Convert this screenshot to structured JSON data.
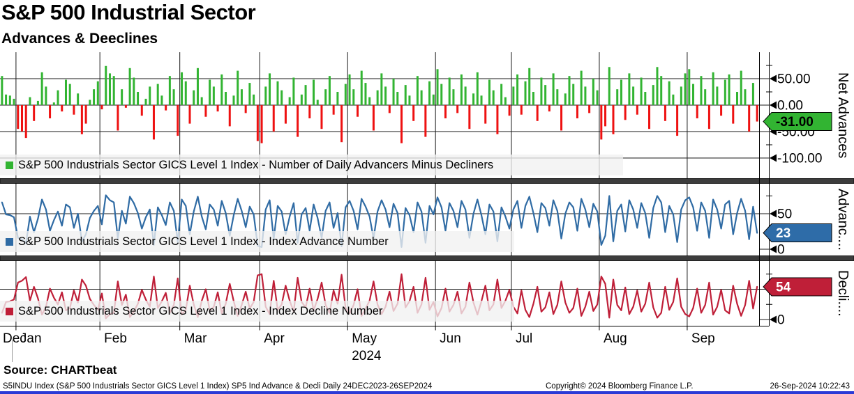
{
  "header": {
    "title": "S&P 500 Industrial Sector",
    "subtitle": "Advances & Deeclines"
  },
  "source_line": "Source: CHARTbeat",
  "footer": {
    "left": "S5INDU Index (S&P 500 Industrials Sector GICS Level 1 Index) SP5 Ind Advance & Decli  Daily 24DEC2023-26SEP2024",
    "center": "Copyright© 2024 Bloomberg Finance L.P.",
    "right": "26-Sep-2024 10:22:43"
  },
  "colors": {
    "advancers_green": "#32b432",
    "decliners_red": "#ee1111",
    "advance_line_blue": "#2f6ba4",
    "decline_line_crimson": "#bf1f38",
    "divider_gray": "#3c3c3c",
    "gridline_black": "#1a1a1a",
    "legend_bg": "#f1f1f1",
    "footer_bar_blue": "#2b3ad6"
  },
  "chart_data": {
    "frequency": "Daily",
    "date_range": "24DEC2023-26SEP2024",
    "x_axis": {
      "months": [
        "Dec",
        "Jan",
        "Feb",
        "Mar",
        "Apr",
        "May",
        "Jun",
        "Jul",
        "Aug",
        "Sep"
      ],
      "year": "2024",
      "month_start_indices": [
        0,
        4,
        25,
        45,
        65,
        87,
        109,
        128,
        150,
        172
      ],
      "num_points": 190
    },
    "panels": [
      {
        "type": "bar",
        "panel_title": "Net Advances",
        "series_name": "net_advances",
        "legend": "S&P 500 Industrials Sector GICS Level 1 Index - Number of Daily Advancers Minus Decliners",
        "last_value": -31,
        "last_value_label": "-31.00",
        "badge_color": "#32b432",
        "badge_text_color": "#000000",
        "positive_color": "#32b432",
        "negative_color": "#ee1111",
        "yticks": [
          {
            "value": 50,
            "label": "50.00"
          },
          {
            "value": 0,
            "label": "0.00"
          },
          {
            "value": -50,
            "label": "-50.00"
          },
          {
            "value": -100,
            "label": "-100.00"
          }
        ],
        "values": [
          55,
          20,
          18,
          12,
          -45,
          -50,
          -62,
          15,
          -30,
          8,
          62,
          35,
          -25,
          5,
          28,
          -12,
          48,
          40,
          -18,
          22,
          -55,
          -35,
          10,
          30,
          45,
          -8,
          74,
          60,
          55,
          -48,
          30,
          -5,
          70,
          52,
          25,
          -20,
          12,
          35,
          -65,
          40,
          18,
          -10,
          55,
          30,
          -58,
          62,
          45,
          -35,
          28,
          70,
          15,
          -22,
          48,
          35,
          -12,
          58,
          25,
          -40,
          18,
          65,
          30,
          -15,
          42,
          20,
          -68,
          -72,
          35,
          60,
          -50,
          45,
          28,
          -35,
          15,
          52,
          -60,
          20,
          38,
          -25,
          48,
          10,
          -45,
          30,
          55,
          -18,
          25,
          -70,
          40,
          58,
          30,
          -22,
          65,
          42,
          15,
          -48,
          28,
          60,
          35,
          -15,
          50,
          25,
          -72,
          38,
          18,
          -30,
          55,
          28,
          -60,
          45,
          20,
          68,
          40,
          -25,
          52,
          30,
          -15,
          58,
          35,
          -45,
          22,
          62,
          18,
          -35,
          48,
          28,
          -55,
          40,
          15,
          -20,
          35,
          58,
          -18,
          45,
          70,
          25,
          -30,
          52,
          38,
          -12,
          60,
          30,
          -48,
          22,
          55,
          40,
          -25,
          65,
          35,
          -15,
          50,
          28,
          -65,
          -40,
          72,
          -55,
          30,
          48,
          -28,
          60,
          35,
          -18,
          52,
          25,
          -45,
          38,
          72,
          55,
          -30,
          45,
          20,
          -58,
          35,
          60,
          68,
          40,
          -25,
          55,
          30,
          -45,
          62,
          35,
          -20,
          48,
          58,
          -35,
          25,
          65,
          30,
          -50,
          42,
          -31
        ]
      },
      {
        "type": "line",
        "panel_title": "Advanc....",
        "series_name": "advance_number",
        "legend": "S&P 500 Industrials Sector GICS Level 1 Index - Index Advance Number",
        "last_value": 23,
        "last_value_label": "23",
        "badge_color": "#2e6ca8",
        "badge_text_color": "#ffffff",
        "color": "#2f6ba4",
        "yticks": [
          {
            "value": 50,
            "label": "50"
          },
          {
            "value": 0,
            "label": "0"
          }
        ],
        "values": [
          66,
          49,
          48,
          45,
          16,
          14,
          8,
          46,
          24,
          43,
          70,
          56,
          26,
          41,
          53,
          33,
          63,
          59,
          30,
          50,
          11,
          21,
          44,
          54,
          61,
          35,
          76,
          69,
          66,
          15,
          54,
          36,
          74,
          65,
          51,
          29,
          45,
          56,
          6,
          59,
          48,
          34,
          66,
          54,
          10,
          70,
          61,
          21,
          53,
          74,
          46,
          28,
          63,
          56,
          33,
          68,
          51,
          19,
          48,
          71,
          54,
          31,
          60,
          49,
          5,
          3,
          56,
          69,
          14,
          61,
          53,
          21,
          46,
          65,
          9,
          49,
          58,
          26,
          63,
          44,
          16,
          54,
          66,
          30,
          51,
          4,
          59,
          68,
          54,
          28,
          71,
          60,
          46,
          15,
          53,
          69,
          56,
          31,
          64,
          51,
          3,
          58,
          48,
          24,
          66,
          53,
          9,
          61,
          49,
          73,
          59,
          26,
          65,
          54,
          31,
          68,
          56,
          16,
          50,
          70,
          48,
          21,
          63,
          53,
          11,
          59,
          46,
          29,
          56,
          68,
          30,
          61,
          74,
          51,
          24,
          65,
          58,
          33,
          69,
          54,
          15,
          50,
          66,
          59,
          26,
          71,
          56,
          31,
          64,
          53,
          6,
          19,
          75,
          11,
          54,
          63,
          25,
          69,
          56,
          30,
          65,
          51,
          16,
          58,
          75,
          66,
          24,
          61,
          49,
          10,
          56,
          69,
          73,
          59,
          26,
          66,
          54,
          16,
          70,
          56,
          29,
          63,
          68,
          21,
          51,
          71,
          54,
          14,
          60,
          23
        ]
      },
      {
        "type": "line",
        "panel_title": "Decli....",
        "series_name": "decline_number",
        "legend": "S&P 500 Industrials Sector GICS Level 1 Index - Index Decline Number",
        "last_value": 54,
        "last_value_label": "54",
        "badge_color": "#bf1f38",
        "badge_text_color": "#ffffff",
        "color": "#bf1f38",
        "yticks": [
          {
            "value": 50,
            "label": "50"
          },
          {
            "value": 0,
            "label": "0"
          }
        ],
        "values": [
          11,
          29,
          30,
          33,
          61,
          64,
          70,
          31,
          54,
          35,
          8,
          21,
          51,
          36,
          25,
          45,
          15,
          19,
          48,
          28,
          66,
          56,
          34,
          24,
          16,
          43,
          2,
          9,
          11,
          63,
          24,
          41,
          4,
          13,
          26,
          49,
          33,
          21,
          71,
          19,
          30,
          44,
          11,
          24,
          68,
          8,
          16,
          56,
          25,
          4,
          31,
          50,
          15,
          21,
          45,
          10,
          26,
          59,
          30,
          6,
          24,
          46,
          18,
          29,
          73,
          75,
          21,
          9,
          64,
          16,
          25,
          56,
          31,
          13,
          69,
          29,
          20,
          51,
          15,
          34,
          61,
          24,
          11,
          48,
          26,
          74,
          19,
          10,
          24,
          50,
          6,
          18,
          31,
          63,
          25,
          9,
          21,
          46,
          14,
          26,
          75,
          20,
          30,
          54,
          11,
          25,
          69,
          16,
          29,
          5,
          19,
          51,
          13,
          24,
          46,
          10,
          21,
          61,
          28,
          8,
          30,
          56,
          15,
          25,
          66,
          19,
          31,
          49,
          21,
          10,
          48,
          16,
          4,
          26,
          54,
          13,
          20,
          45,
          9,
          24,
          63,
          28,
          11,
          19,
          51,
          6,
          21,
          46,
          14,
          25,
          71,
          59,
          3,
          66,
          24,
          15,
          53,
          9,
          21,
          48,
          13,
          26,
          61,
          20,
          3,
          11,
          54,
          16,
          29,
          68,
          21,
          9,
          5,
          19,
          51,
          11,
          24,
          61,
          8,
          21,
          49,
          15,
          10,
          56,
          26,
          6,
          24,
          64,
          18,
          54
        ]
      }
    ]
  }
}
